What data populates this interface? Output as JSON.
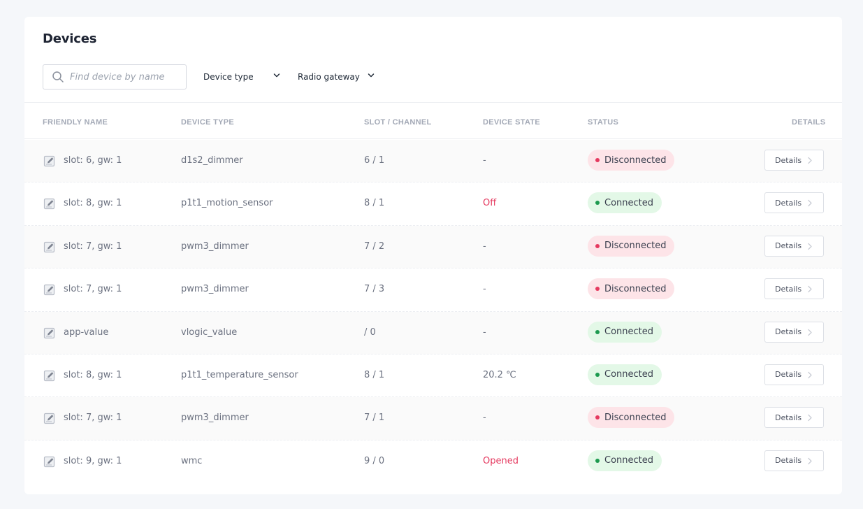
{
  "page": {
    "title": "Devices"
  },
  "filters": {
    "search_placeholder": "Find device by name",
    "device_type_label": "Device type",
    "radio_gateway_label": "Radio gateway"
  },
  "table": {
    "headers": {
      "friendly_name": "FRIENDLY NAME",
      "device_type": "DEVICE TYPE",
      "slot_channel": "SLOT / CHANNEL",
      "device_state": "DEVICE STATE",
      "status": "STATUS",
      "details": "DETAILS"
    },
    "details_button_label": "Details",
    "rows": [
      {
        "name": "slot: 6, gw: 1",
        "type": "d1s2_dimmer",
        "slot": "6 / 1",
        "state": "-",
        "state_color": "muted",
        "status": "Disconnected",
        "status_kind": "bad"
      },
      {
        "name": "slot: 8, gw: 1",
        "type": "p1t1_motion_sensor",
        "slot": "8 / 1",
        "state": "Off",
        "state_color": "red",
        "status": "Connected",
        "status_kind": "good"
      },
      {
        "name": "slot: 7, gw: 1",
        "type": "pwm3_dimmer",
        "slot": "7 / 2",
        "state": "-",
        "state_color": "muted",
        "status": "Disconnected",
        "status_kind": "bad"
      },
      {
        "name": "slot: 7, gw: 1",
        "type": "pwm3_dimmer",
        "slot": "7 / 3",
        "state": "-",
        "state_color": "muted",
        "status": "Disconnected",
        "status_kind": "bad"
      },
      {
        "name": "app-value",
        "type": "vlogic_value",
        "slot": "/ 0",
        "state": "-",
        "state_color": "muted",
        "status": "Connected",
        "status_kind": "good"
      },
      {
        "name": "slot: 8, gw: 1",
        "type": "p1t1_temperature_sensor",
        "slot": "8 / 1",
        "state": "20.2 ℃",
        "state_color": "muted",
        "status": "Connected",
        "status_kind": "good"
      },
      {
        "name": "slot: 7, gw: 1",
        "type": "pwm3_dimmer",
        "slot": "7 / 1",
        "state": "-",
        "state_color": "muted",
        "status": "Disconnected",
        "status_kind": "bad"
      },
      {
        "name": "slot: 9, gw: 1",
        "type": "wmc",
        "slot": "9 / 0",
        "state": "Opened",
        "state_color": "red",
        "status": "Connected",
        "status_kind": "good"
      }
    ]
  },
  "icons": {
    "search": "search-icon",
    "edit": "edit-icon",
    "chevron_down": "chevron-down-icon",
    "chevron_right": "chevron-right-icon"
  },
  "colors": {
    "disconnected_bg": "#fde4e8",
    "disconnected_dot": "#e5395f",
    "connected_bg": "#e3f8e7",
    "connected_dot": "#1d9a4f",
    "state_alert": "#e5395f"
  }
}
